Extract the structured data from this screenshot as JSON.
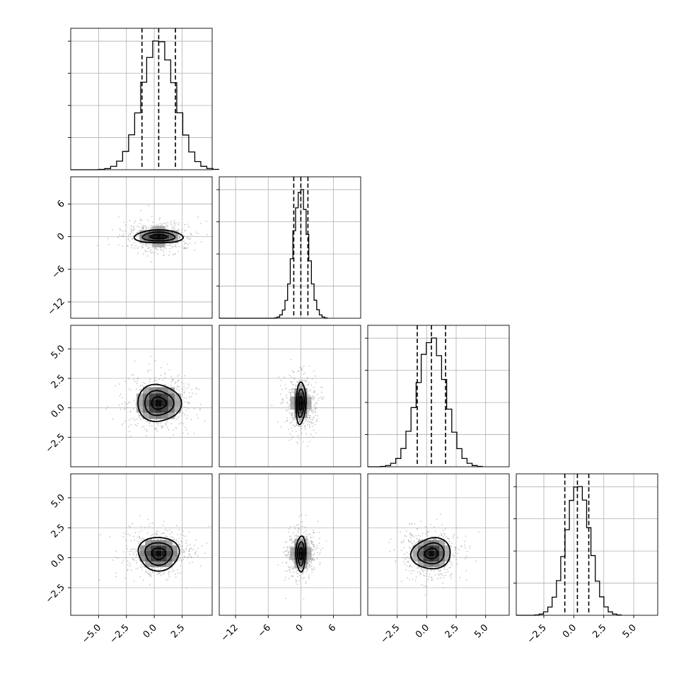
{
  "chart_data": {
    "type": "corner",
    "n_params": 4,
    "grid": true,
    "params": [
      {
        "center": 0.4,
        "sigma": 1.5,
        "xlim": [
          -7.5,
          5.2
        ],
        "ticks": [
          -5.0,
          -2.5,
          0.0,
          2.5
        ],
        "tick_labels": [
          "−5.0",
          "−2.5",
          "0.0",
          "2.5"
        ],
        "quantiles": [
          -1.1,
          0.4,
          1.9
        ]
      },
      {
        "center": 0.0,
        "sigma": 1.35,
        "xlim": [
          -15.0,
          11.0
        ],
        "ticks": [
          -12,
          -6,
          0,
          6
        ],
        "tick_labels": [
          "−12",
          "−6",
          "0",
          "6"
        ],
        "quantiles": [
          -1.3,
          0.0,
          1.3
        ]
      },
      {
        "center": 0.4,
        "sigma": 1.2,
        "xlim": [
          -5.0,
          7.0
        ],
        "ticks": [
          -2.5,
          0.0,
          2.5,
          5.0
        ],
        "tick_labels": [
          "−2.5",
          "0.0",
          "2.5",
          "5.0"
        ],
        "quantiles": [
          -0.8,
          0.4,
          1.6
        ]
      },
      {
        "center": 0.35,
        "sigma": 1.0,
        "xlim": [
          -4.8,
          7.0
        ],
        "ticks": [
          -2.5,
          0.0,
          2.5,
          5.0
        ],
        "tick_labels": [
          "−2.5",
          "0.0",
          "2.5",
          "5.0"
        ],
        "quantiles": [
          -0.75,
          0.3,
          1.25
        ]
      }
    ],
    "panels": [
      {
        "row": 1,
        "col": 0,
        "rx": 2.1,
        "ry": 1.25,
        "rot": 0
      },
      {
        "row": 2,
        "col": 0,
        "rx": 1.9,
        "ry": 1.6,
        "rot": -0.15
      },
      {
        "row": 2,
        "col": 1,
        "rx": 0.9,
        "ry": 1.75,
        "rot": 0.05
      },
      {
        "row": 3,
        "col": 0,
        "rx": 1.9,
        "ry": 1.35,
        "rot": 0
      },
      {
        "row": 3,
        "col": 1,
        "rx": 0.9,
        "ry": 1.45,
        "rot": 0
      },
      {
        "row": 3,
        "col": 2,
        "rx": 1.65,
        "ry": 1.3,
        "rot": 0
      }
    ],
    "contour_levels": [
      0.5,
      1.0,
      1.5
    ],
    "hist_bins": 20
  }
}
